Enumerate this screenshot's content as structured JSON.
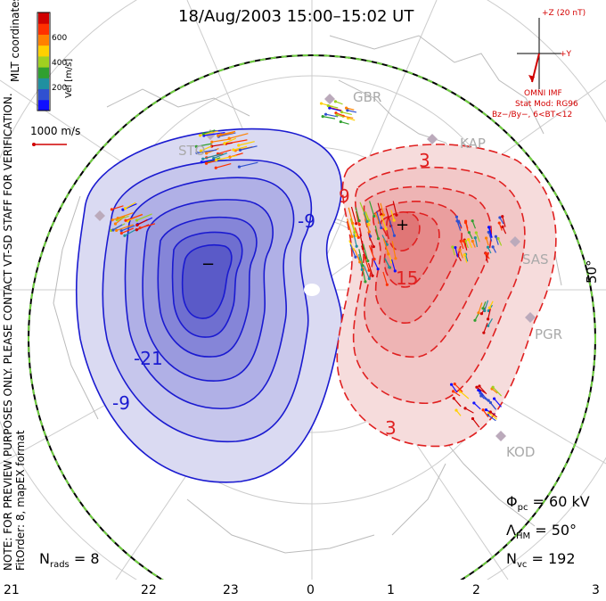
{
  "title": "18/Aug/2003 15:00–15:02 UT",
  "colorbar": {
    "label": "Vel [m/s]",
    "ticks": [
      "600",
      "400",
      "200"
    ],
    "colors": [
      "#d00000",
      "#ff3000",
      "#ff8000",
      "#ffd000",
      "#a0d020",
      "#30a030",
      "#2090a0",
      "#3050d0",
      "#1010ff"
    ]
  },
  "scale_label": "1000 m/s",
  "coords_label": "MLT coordinates",
  "note": "NOTE: FOR PREVIEW PURPOSES ONLY. PLEASE CONTACT VT-SD STAFF FOR VERIFICATION.",
  "fitorder": "FitOrder: 8, mapEX format",
  "imf": {
    "z_label": "+Z (20 nT)",
    "y_label": "+Y",
    "source": "OMNI IMF",
    "model": "Stat Mod: RG96",
    "condition": "Bz−/By−, 6<BT<12"
  },
  "stats": {
    "phi_pc": "Φpc = 60 kV",
    "phi_pc_symbol": "Φ",
    "phi_pc_sub": "pc",
    "phi_pc_value": "= 60 kV",
    "lambda_symbol": "Λ",
    "lambda_sub": "HM",
    "lambda_value": "= 50°",
    "nvc_symbol": "N",
    "nvc_sub": "vc",
    "nvc_value": "= 192",
    "nrads_symbol": "N",
    "nrads_sub": "rads",
    "nrads_value": "= 8"
  },
  "mlt_hours": [
    "21",
    "22",
    "23",
    "0",
    "1",
    "2",
    "3"
  ],
  "latitude_label": "50°",
  "stations": [
    "GBR",
    "STO",
    "KAP",
    "SAS",
    "PGR",
    "KOD"
  ],
  "contour_labels": {
    "neg": [
      "-9",
      "-21",
      "-9"
    ],
    "pos": [
      "3",
      "15",
      "3",
      "9"
    ]
  },
  "markers": {
    "min": "−",
    "max": "+"
  },
  "colors": {
    "negative": "#1a1ad0",
    "positive": "#e02020",
    "neg_fill": "#4a4ae0",
    "pos_fill": "#f06a6a",
    "boundary": "#70d040"
  }
}
